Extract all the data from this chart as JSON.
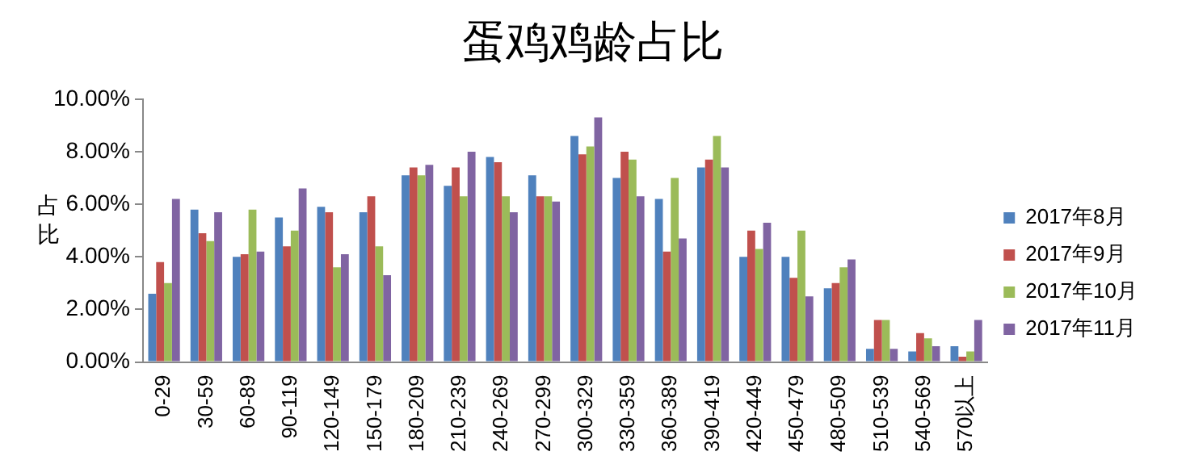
{
  "chart_data": {
    "type": "bar",
    "title": "蛋鸡鸡龄占比",
    "ylabel": "占比",
    "categories": [
      "0-29",
      "30-59",
      "60-89",
      "90-119",
      "120-149",
      "150-179",
      "180-209",
      "210-239",
      "240-269",
      "270-299",
      "300-329",
      "330-359",
      "360-389",
      "390-419",
      "420-449",
      "450-479",
      "480-509",
      "510-539",
      "540-569",
      "570以上"
    ],
    "series": [
      {
        "name": "2017年8月",
        "color": "#4f81bd",
        "values": [
          2.6,
          5.8,
          4.0,
          5.5,
          5.9,
          5.7,
          7.1,
          6.7,
          7.8,
          7.1,
          8.6,
          7.0,
          6.2,
          7.4,
          4.0,
          4.0,
          2.8,
          0.5,
          0.4,
          0.6
        ]
      },
      {
        "name": "2017年9月",
        "color": "#c0504d",
        "values": [
          3.8,
          4.9,
          4.1,
          4.4,
          5.7,
          6.3,
          7.4,
          7.4,
          7.6,
          6.3,
          7.9,
          8.0,
          4.2,
          7.7,
          5.0,
          3.2,
          3.0,
          1.6,
          1.1,
          0.2
        ]
      },
      {
        "name": "2017年10月",
        "color": "#9bbb59",
        "values": [
          3.0,
          4.6,
          5.8,
          5.0,
          3.6,
          4.4,
          7.1,
          6.3,
          6.3,
          6.3,
          8.2,
          7.7,
          7.0,
          8.6,
          4.3,
          5.0,
          3.6,
          1.6,
          0.9,
          0.4
        ]
      },
      {
        "name": "2017年11月",
        "color": "#8064a2",
        "values": [
          6.2,
          5.7,
          4.2,
          6.6,
          4.1,
          3.3,
          7.5,
          8.0,
          5.7,
          6.1,
          9.3,
          6.3,
          4.7,
          7.4,
          5.3,
          2.5,
          3.9,
          0.5,
          0.6,
          1.6
        ]
      }
    ],
    "ylim": [
      0,
      10
    ],
    "yticks": [
      {
        "value": 0,
        "label": "0.00%"
      },
      {
        "value": 2,
        "label": "2.00%"
      },
      {
        "value": 4,
        "label": "4.00%"
      },
      {
        "value": 6,
        "label": "6.00%"
      },
      {
        "value": 8,
        "label": "8.00%"
      },
      {
        "value": 10,
        "label": "10.00%"
      }
    ],
    "grid": false,
    "legend": "right"
  }
}
